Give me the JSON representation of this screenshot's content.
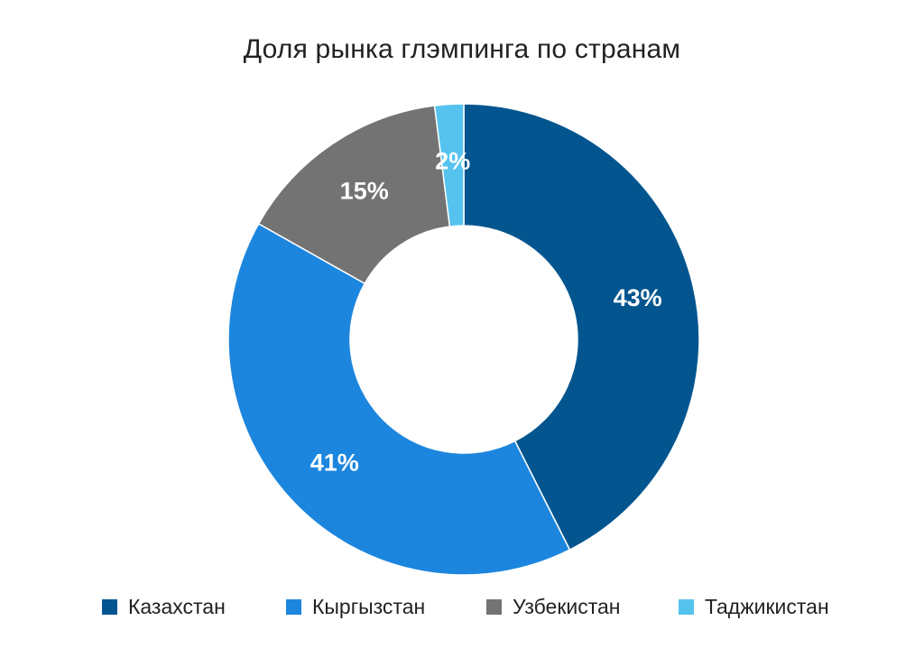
{
  "chart_data": {
    "type": "pie",
    "title": "Доля рынка глэмпинга по странам",
    "categories": [
      "Казахстан",
      "Кыргызстан",
      "Узбекистан",
      "Таджикистан"
    ],
    "values": [
      43,
      41,
      15,
      2
    ],
    "labels": [
      "43%",
      "41%",
      "15%",
      "2%"
    ],
    "colors": [
      "#02558e",
      "#1c86de",
      "#737373",
      "#55c3ee"
    ],
    "donut": true,
    "legend_position": "bottom"
  }
}
